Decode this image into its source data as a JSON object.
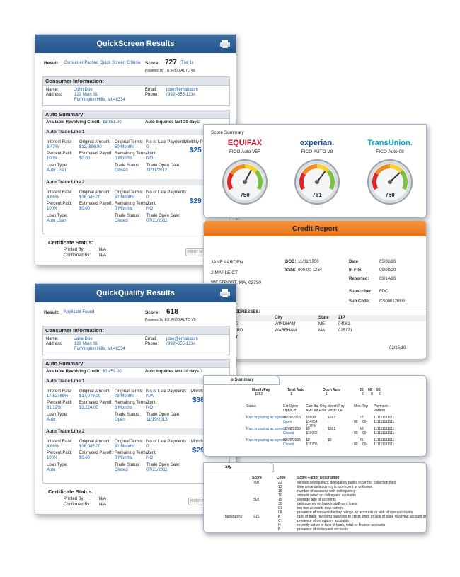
{
  "quickscreen": {
    "title": "QuickScreen Results",
    "result_label": "Result:",
    "result_value": "Consumer Passed Quick Screen Criteria",
    "score_label": "Score:",
    "score_value": "727",
    "score_tier": "(Tier 1)",
    "powered_by": "Powered by TU: FICO AUTO 08",
    "consumer_header": "Consumer Information:",
    "name_label": "Name:",
    "name": "John Doe",
    "address_label": "Address:",
    "address1": "123 Main St.",
    "address2": "Farmington Hills, MI 48334",
    "email_label": "Email:",
    "email": "jdoe@email.com",
    "phone_label": "Phone:",
    "phone": "(999)-555-1234",
    "auto_header": "Auto Summary:",
    "revolving_label": "Available Revolving Credit:",
    "revolving_value": "$3,881.00",
    "inquiries_label": "Auto Inquiries last 30 days:",
    "inquiries_value": "0",
    "line1": {
      "title": "Auto Trade Line 1",
      "interest_label": "Interest Rate:",
      "interest": "6.47%",
      "orig_label": "Original Amount:",
      "orig": "$12, 896.00",
      "terms_label": "Original Terms:",
      "terms": "60 Months",
      "late_label": "No of Late Payments:",
      "late": "0",
      "paid_label": "Percent Paid:",
      "paid": "100%",
      "payoff_label": "Estimated Payoff:",
      "payoff": "$0.00",
      "remaining_label": "Remaining Terms:",
      "remaining": "0 Months",
      "joint_label": "Joint:",
      "joint": "NO",
      "loan_label": "Loan Type:",
      "loan": "Auto Loan",
      "status_label": "Trade Status:",
      "status": "Closed",
      "open_label": "Trade Open Date:",
      "open": "11/11/2012",
      "monthly_label": "Monthly P",
      "monthly": "$25"
    },
    "line2": {
      "title": "Auto Trade Line 2",
      "interest_label": "Interest Rate:",
      "interest": "4.66%",
      "orig_label": "Original Amount:",
      "orig": "$16,045.00",
      "terms_label": "Original Terms:",
      "terms": "61 Months",
      "late_label": "No of Late Payments:",
      "late": "0",
      "paid_label": "Percent Paid:",
      "paid": "100%",
      "payoff_label": "Estimated Payoff:",
      "payoff": "$0.00",
      "remaining_label": "Remaining Terms:",
      "remaining": "0 Months",
      "joint_label": "Joint:",
      "joint": "NO",
      "loan_label": "Loan Type:",
      "loan": "Auto Loan",
      "status_label": "Trade Status:",
      "status": "Closed",
      "open_label": "Trade Open Date:",
      "open": "07/21/2011",
      "monthly": "$29"
    },
    "cert_header": "Certificate Status:",
    "printed_label": "Printed By:",
    "printed": "N/A",
    "confirmed_label": "Confirmed By:",
    "confirmed": "N/A",
    "print_button": "PRINT NO"
  },
  "quickqualify": {
    "title": "QuickQualify Results",
    "result_label": "Result:",
    "result_value": "Applicant Found",
    "score_label": "Score:",
    "score_value": "618",
    "powered_by": "Powered by EX: FICO AUTO V8",
    "consumer_header": "Consumer Information:",
    "name_label": "Name:",
    "name": "Jane Doe",
    "address_label": "Address:",
    "address1": "123 Main St.",
    "address2": "Farmington Hills, MI 48334",
    "email_label": "Email:",
    "email": "jdoe@email.com",
    "phone_label": "Phone:",
    "phone": "(999)-555-1234",
    "auto_header": "Auto Summary:",
    "revolving_label": "Available Revolving Credit:",
    "revolving_value": "$1,459.00",
    "inquiries_label": "Auto Inquiries last 30 days:",
    "inquiries_value": "0",
    "line1": {
      "title": "Auto Trade Line 1",
      "interest_label": "Interest Rate:",
      "interest": "17.52765%",
      "orig_label": "Original Amount:",
      "orig": "$17,079.00",
      "terms_label": "Original Terms:",
      "terms": "73 Months",
      "late_label": "No of Late Payments:",
      "late": "N/A",
      "paid_label": "Percent Paid:",
      "paid": "81.12%",
      "payoff_label": "Estimated Payoff:",
      "payoff": "$3,224.00",
      "remaining_label": "Remaining Terms:",
      "remaining": "6 Months",
      "joint_label": "Joint:",
      "joint": "NO",
      "loan_label": "Loan Type:",
      "loan": "Auto",
      "status_label": "Trade Status:",
      "status": "Open",
      "open_label": "Trade Open Date:",
      "open": "11/19/2013",
      "monthly_label": "Monthly Payment",
      "monthly": "$382.00"
    },
    "line2": {
      "title": "Auto Trade Line 2",
      "interest_label": "Interest Rate:",
      "interest": "4.66%",
      "orig_label": "Original Amount:",
      "orig": "$16,045.00",
      "terms_label": "Original Terms:",
      "terms": "61 Months",
      "late_label": "No of Late Payments:",
      "late": "0",
      "paid_label": "Percent Paid:",
      "paid": "100%",
      "payoff_label": "Estimated Payoff:",
      "payoff": "$0.00",
      "remaining_label": "Remaining Terms:",
      "remaining": "0 Months",
      "joint_label": "Joint:",
      "joint": "NO",
      "loan_label": "Loan Type:",
      "loan": "Auto",
      "status_label": "Trade Status:",
      "status": "Closed",
      "open_label": "Trade Open Date:",
      "open": "07/21/2011",
      "monthly_label": "Monthly Payment",
      "monthly": "$296.00"
    },
    "cert_header": "Certificate Status:",
    "printed_label": "Printed By:",
    "printed": "N/A",
    "confirmed_label": "Confirmed By:",
    "confirmed": "N/A",
    "print_button": "PRINT NOW"
  },
  "score_summary": {
    "tab_label": "Score Summary",
    "bureaus": [
      {
        "name": "EQUIFAX",
        "model": "FICO Auto V5F",
        "score": "750",
        "color": "#c8102e",
        "level": 0.62
      },
      {
        "name": "experian.",
        "model": "FICO AUTO V8",
        "score": "761",
        "color": "#1d4f91",
        "level": 0.66
      },
      {
        "name": "TransUnion.",
        "model": "FICO Auto 08",
        "score": "780",
        "color": "#00a6ca",
        "level": 0.7
      }
    ]
  },
  "credit_report": {
    "title": "Credit Report",
    "name": "JANE AARDEN",
    "street": "2 MAPLE CT",
    "city": "WESTPORT, MA, 02790",
    "dob_label": "DOB:",
    "dob": "11/01/1950",
    "ssn_label": "SSN:",
    "ssn": "000-00-1234",
    "date_label": "Date",
    "date": "05/02/20",
    "infile_label": "In File:",
    "infile": "09/08/20",
    "reported_label": "Reported:",
    "reported": "03/14/20",
    "subscriber_label": "Subscriber:",
    "subscriber": "FDC",
    "subcode_label": "Sub Code:",
    "subcode": "CS0001208G",
    "addresses_label": "ADDRESSES:",
    "col_city": "City",
    "col_state": "State",
    "col_zip": "ZIP",
    "addr_rows": [
      {
        "street": "OG",
        "city": "WINDHAM",
        "state": "ME",
        "zip": "04062"
      },
      {
        "street": "M RD",
        "city": "WAREHAM",
        "state": "MA",
        "zip": "025171"
      }
    ],
    "extra1": "NT",
    "extra2": "X",
    "extra_date": "02/15/10"
  },
  "auto_summary_card": {
    "tab_label": "o Summary",
    "headers": [
      "Month Pay",
      "Total Auto",
      "Open Auto",
      "30",
      "60",
      "90"
    ],
    "header_vals": [
      "$282",
      "1",
      "1",
      "0",
      "0",
      "0"
    ],
    "cols": [
      "Status",
      "Ext Open Opn/Cld",
      "Curr Bal Orig AMT Int Rate",
      "Month Pay Past Due",
      "Mos Rep",
      "Payment Pattern"
    ],
    "rows": [
      {
        "status": "Paid or paying as agreed",
        "date": "09/26/2015",
        "state": "Open",
        "bal": "$5608",
        "orig": "$14254",
        "rate": "7.02%",
        "pay": "$282",
        "due": "-",
        "mos": "27",
        "p1": "00",
        "p2": "00",
        "pattern": "111111111111"
      },
      {
        "status": "Paid or paying as agreed",
        "date": "10/08/2009",
        "state": "Closed",
        "bal": "$0",
        "orig": "$19062",
        "rate": "",
        "pay": "$301",
        "due": "-",
        "mos": "48",
        "p1": "00",
        "p2": "00",
        "pattern": "111111111111"
      },
      {
        "status": "Paid or paying as agreed",
        "date": "03/26/2005",
        "state": "Closed",
        "bal": "$0",
        "orig": "$18205",
        "rate": "",
        "pay": "$0",
        "due": "-",
        "mos": "41",
        "p1": "00",
        "p2": "00",
        "pattern": "111111111111"
      }
    ]
  },
  "score_factors_card": {
    "tab_label": "ary",
    "col_score": "Score",
    "col_code": "Code",
    "col_desc": "Score Factor Description",
    "rows": [
      {
        "left": "",
        "score": "700",
        "code": "22",
        "desc": "serious delinquency, derogatory public record or collection filed"
      },
      {
        "left": "",
        "score": "",
        "code": "13",
        "desc": "time since delinquency is too recent or unknown"
      },
      {
        "left": "",
        "score": "",
        "code": "18",
        "desc": "number of accounts with delinquency"
      },
      {
        "left": "",
        "score": "",
        "code": "10",
        "desc": "amount owed on delinquent accounts"
      },
      {
        "left": "",
        "score": "502",
        "code": "15",
        "desc": "average age of accounts"
      },
      {
        "left": "",
        "score": "",
        "code": "35",
        "desc": "delinquency on bank installment loans"
      },
      {
        "left": "",
        "score": "",
        "code": "01",
        "desc": "too few accounts now current"
      },
      {
        "left": "",
        "score": "",
        "code": "08",
        "desc": "presence of non-satisfactory ratings on accounts or lack of open accounts"
      },
      {
        "left": "bankruptcy",
        "score": "915",
        "code": "K",
        "desc": "ratio of bank revolving balances to credit limits or lack of bank revolving account information"
      },
      {
        "left": "",
        "score": "",
        "code": "C",
        "desc": "presence of derogatory accounts"
      },
      {
        "left": "",
        "score": "",
        "code": "H",
        "desc": "recently active or lack of bank, retail or finance accounts"
      },
      {
        "left": "",
        "score": "",
        "code": "B",
        "desc": "presence of delinquent accounts"
      }
    ]
  }
}
